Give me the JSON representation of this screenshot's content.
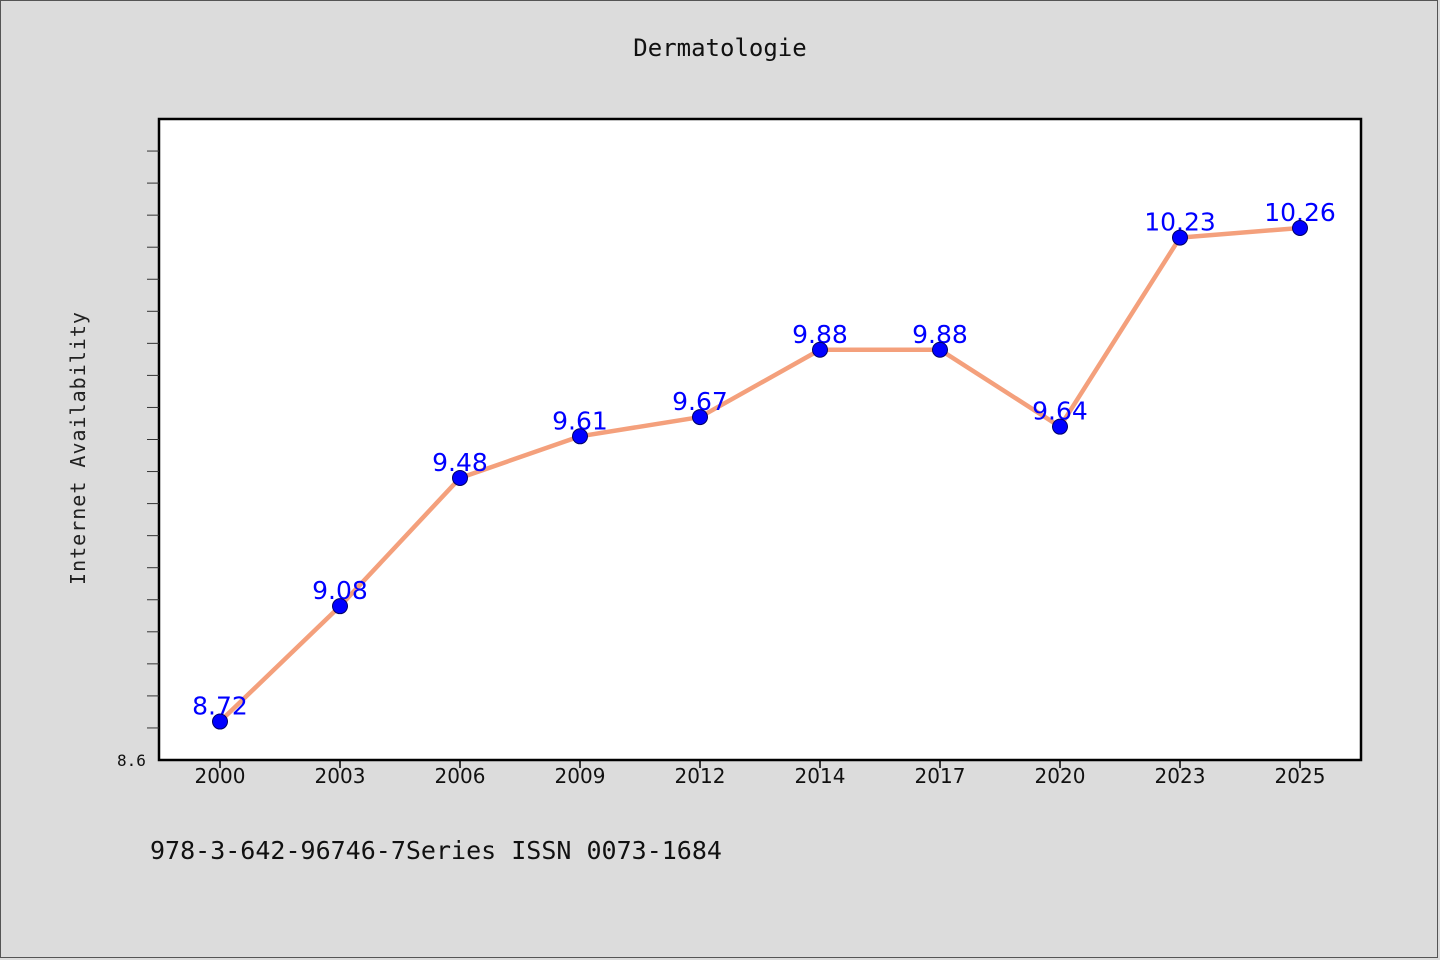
{
  "title": "Dermatologie",
  "footer": "978-3-642-96746-7Series ISSN 0073-1684",
  "chart_data": {
    "type": "line",
    "title": "Dermatologie",
    "xlabel": "",
    "ylabel": "Internet Availability",
    "categories": [
      "2000",
      "2003",
      "2006",
      "2009",
      "2012",
      "2014",
      "2017",
      "2020",
      "2023",
      "2025"
    ],
    "values": [
      8.72,
      9.08,
      9.48,
      9.61,
      9.67,
      9.88,
      9.88,
      9.64,
      10.23,
      10.26
    ],
    "data_labels": [
      "8.72",
      "9.08",
      "9.48",
      "9.61",
      "9.67",
      "9.88",
      "9.88",
      "9.64",
      "10.23",
      "10.26"
    ],
    "y_tick_labels": [
      "8.6"
    ],
    "ylim": [
      8.6,
      10.6
    ],
    "grid": false,
    "legend": "none",
    "line_color": "#f4a07c",
    "marker_color": "#0000ff",
    "label_color": "#0000ff"
  }
}
